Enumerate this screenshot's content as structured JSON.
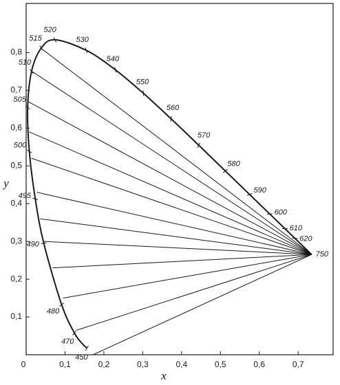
{
  "chart_data": {
    "type": "line",
    "x_label": "x",
    "y_label": "y",
    "xlim": [
      0,
      0.79
    ],
    "ylim": [
      0,
      0.93
    ],
    "xticks": [
      0,
      {
        "value": 0.1,
        "label": "0,1"
      },
      {
        "value": 0.2,
        "label": "0,2"
      },
      {
        "value": 0.3,
        "label": "0,3"
      },
      {
        "value": 0.4,
        "label": "0,4"
      },
      {
        "value": 0.5,
        "label": "0,5"
      },
      {
        "value": 0.6,
        "label": "0,6"
      },
      {
        "value": 0.7,
        "label": "0,7"
      }
    ],
    "yticks": [
      {
        "value": 0.1,
        "label": "0,1"
      },
      {
        "value": 0.2,
        "label": "0,2"
      },
      {
        "value": 0.3,
        "label": "0,3"
      },
      {
        "value": 0.4,
        "label": "0,4"
      },
      {
        "value": 0.5,
        "label": "0,5"
      },
      {
        "value": 0.6,
        "label": "0,6"
      },
      {
        "value": 0.7,
        "label": "0,7"
      },
      {
        "value": 0.8,
        "label": "0,8"
      }
    ],
    "color": "#1a1a1a",
    "locus": {
      "labels": [
        "450",
        null,
        "470",
        "480",
        "490",
        "495",
        "500",
        "505",
        "510",
        "515",
        "520",
        "530",
        "540",
        "550",
        "560",
        "570",
        "580",
        "590",
        "600",
        "610",
        "620",
        "750"
      ],
      "x": [
        0.1566,
        0.144,
        0.1241,
        0.0913,
        0.0454,
        0.0235,
        0.0082,
        0.0039,
        0.0139,
        0.0389,
        0.0743,
        0.1547,
        0.2296,
        0.3016,
        0.3731,
        0.4441,
        0.5125,
        0.5752,
        0.627,
        0.6658,
        0.6915,
        0.7347
      ],
      "y": [
        0.0177,
        0.0297,
        0.0578,
        0.1327,
        0.295,
        0.4127,
        0.5384,
        0.6548,
        0.7502,
        0.812,
        0.8338,
        0.8059,
        0.7543,
        0.6923,
        0.6245,
        0.5547,
        0.4866,
        0.4242,
        0.3725,
        0.334,
        0.3083,
        0.2653
      ]
    },
    "fan_lines": {
      "x": [
        0.04,
        0.015,
        0.005,
        0.008,
        0.014,
        0.028,
        0.036,
        0.045,
        0.068,
        0.095,
        0.13,
        0.172
      ],
      "y": [
        0.81,
        0.75,
        0.67,
        0.59,
        0.52,
        0.43,
        0.36,
        0.3,
        0.23,
        0.15,
        0.065,
        0.0
      ]
    }
  }
}
